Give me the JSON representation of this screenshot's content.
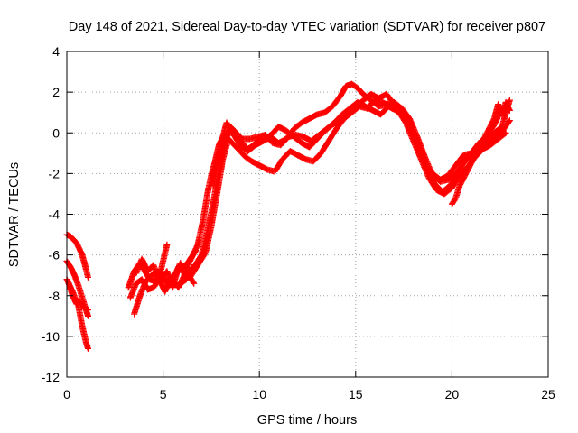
{
  "chart_data": {
    "type": "scatter",
    "title": "Day 148 of 2021, Sidereal Day-to-day VTEC variation (SDTVAR) for receiver p807",
    "xlabel": "GPS time / hours",
    "ylabel": "SDTVAR / TECUs",
    "xlim": [
      0,
      25
    ],
    "ylim": [
      -12,
      4
    ],
    "xticks": [
      0,
      5,
      10,
      15,
      20,
      25
    ],
    "yticks": [
      -12,
      -10,
      -8,
      -6,
      -4,
      -2,
      0,
      2,
      4
    ],
    "grid": true,
    "legend": "none",
    "marker": "+",
    "series_color": "#ff0000",
    "series": [
      {
        "name": "track-1",
        "x": [
          0.0,
          0.3,
          0.6,
          0.8,
          1.0,
          1.1
        ],
        "y": [
          -7.2,
          -7.8,
          -8.5,
          -9.5,
          -10.3,
          -10.6
        ]
      },
      {
        "name": "track-2",
        "x": [
          0.0,
          0.2,
          0.5,
          0.8,
          1.0,
          1.1
        ],
        "y": [
          -5.0,
          -5.1,
          -5.4,
          -6.0,
          -6.7,
          -7.1
        ]
      },
      {
        "name": "track-3",
        "x": [
          0.0,
          0.2,
          0.4,
          0.6,
          0.8,
          1.0,
          1.1
        ],
        "y": [
          -6.3,
          -6.6,
          -7.0,
          -7.5,
          -8.1,
          -8.7,
          -9.0
        ]
      },
      {
        "name": "track-4",
        "x": [
          0.1,
          0.3,
          0.5,
          0.7,
          0.9,
          1.1
        ],
        "y": [
          -7.4,
          -8.0,
          -8.4,
          -8.3,
          -8.6,
          -8.7
        ]
      },
      {
        "name": "track-5",
        "x": [
          3.2,
          3.5,
          3.8,
          4.0,
          4.3,
          4.6,
          4.9,
          5.2
        ],
        "y": [
          -7.6,
          -6.8,
          -6.4,
          -6.7,
          -7.2,
          -7.3,
          -6.7,
          -5.5
        ]
      },
      {
        "name": "track-6",
        "x": [
          3.3,
          3.6,
          3.9,
          4.2,
          4.5,
          4.8,
          5.1,
          5.4,
          5.8,
          6.2,
          6.6
        ],
        "y": [
          -8.1,
          -7.4,
          -7.2,
          -7.7,
          -7.6,
          -7.2,
          -7.8,
          -7.1,
          -7.6,
          -6.8,
          -7.4
        ]
      },
      {
        "name": "track-7",
        "x": [
          3.5,
          3.8,
          4.1,
          4.4,
          4.7,
          5.0,
          5.3,
          5.6,
          5.9,
          6.2,
          6.5
        ],
        "y": [
          -8.9,
          -8.0,
          -7.3,
          -7.0,
          -6.8,
          -7.1,
          -7.5,
          -7.0,
          -6.4,
          -7.2,
          -6.6
        ]
      },
      {
        "name": "track-8",
        "x": [
          3.6,
          3.9,
          4.2,
          4.5,
          4.8,
          5.2,
          5.5,
          5.8,
          6.1,
          6.4,
          6.7
        ],
        "y": [
          -6.9,
          -6.2,
          -6.8,
          -6.5,
          -7.3,
          -6.8,
          -7.6,
          -6.6,
          -6.8,
          -6.2,
          -5.8
        ]
      },
      {
        "name": "track-9",
        "x": [
          5.6,
          6.0,
          6.4,
          6.8,
          7.1,
          7.3,
          7.5,
          7.7,
          7.9,
          8.1,
          8.3,
          8.5,
          8.8,
          9.1,
          9.4,
          9.8,
          10.2,
          10.6,
          11.0,
          11.4,
          11.8,
          12.2,
          12.6,
          13.0,
          13.4,
          13.8,
          14.2,
          14.5,
          14.8,
          15.1,
          15.4,
          15.8,
          16.2,
          16.6,
          17.0,
          17.4,
          17.8,
          18.2,
          18.6,
          19.0,
          19.4,
          19.8,
          20.2,
          20.6,
          21.0,
          21.4,
          21.8,
          22.2,
          22.6,
          23.0
        ],
        "y": [
          -7.0,
          -6.6,
          -6.3,
          -5.5,
          -4.2,
          -3.0,
          -2.1,
          -1.4,
          -0.6,
          -0.2,
          0.5,
          0.2,
          -0.3,
          -0.7,
          -0.9,
          -0.6,
          -0.4,
          -0.2,
          -0.5,
          -0.3,
          0.2,
          0.5,
          0.7,
          0.9,
          1.0,
          1.3,
          1.8,
          2.3,
          2.4,
          2.2,
          1.9,
          1.6,
          1.3,
          1.4,
          1.5,
          1.2,
          0.7,
          -0.2,
          -1.2,
          -2.1,
          -2.4,
          -2.3,
          -2.0,
          -1.5,
          -1.1,
          -0.6,
          -0.3,
          0.0,
          0.3,
          1.6
        ]
      },
      {
        "name": "track-10",
        "x": [
          5.8,
          6.2,
          6.6,
          7.0,
          7.3,
          7.6,
          7.9,
          8.2,
          8.5,
          8.8,
          9.1,
          9.5,
          9.9,
          10.3,
          10.7,
          11.1,
          11.5,
          11.9,
          12.3,
          12.7,
          13.1,
          13.5,
          13.9,
          14.3,
          14.7,
          15.1,
          15.5,
          15.9,
          16.3,
          16.7,
          17.1,
          17.5,
          17.9,
          18.3,
          18.7,
          19.1,
          19.5,
          19.9,
          20.3,
          20.7,
          21.1,
          21.5,
          21.9,
          22.3,
          22.7,
          23.0
        ],
        "y": [
          -7.5,
          -7.2,
          -6.6,
          -6.0,
          -4.8,
          -3.5,
          -1.8,
          -0.6,
          0.3,
          0.0,
          -0.3,
          -0.3,
          -0.2,
          -0.1,
          -0.5,
          -0.6,
          -0.2,
          -0.1,
          -0.2,
          -0.4,
          -0.1,
          0.2,
          0.5,
          0.9,
          1.2,
          1.5,
          1.3,
          1.1,
          0.9,
          1.3,
          1.1,
          0.8,
          0.0,
          -0.9,
          -1.8,
          -2.5,
          -2.9,
          -2.6,
          -2.0,
          -1.3,
          -0.9,
          -0.7,
          -0.4,
          -0.2,
          0.2,
          0.6
        ]
      },
      {
        "name": "track-11",
        "x": [
          6.4,
          6.8,
          7.2,
          7.5,
          7.8,
          8.1,
          8.4,
          8.7,
          9.0,
          9.3,
          9.6,
          10.0,
          10.4,
          10.8,
          11.2,
          11.6,
          12.0,
          12.4,
          12.8,
          13.2,
          13.6,
          14.0,
          14.4,
          14.8,
          15.2,
          15.6,
          16.0,
          16.4,
          16.8,
          17.2,
          17.6,
          18.0,
          18.4,
          18.8,
          19.2,
          19.6,
          20.0,
          20.4,
          20.8,
          21.2,
          21.6,
          22.0,
          22.4,
          22.8
        ],
        "y": [
          -7.1,
          -6.5,
          -5.9,
          -4.6,
          -3.0,
          -1.3,
          -0.3,
          -0.6,
          -0.9,
          -1.2,
          -1.4,
          -1.6,
          -1.8,
          -1.9,
          -1.3,
          -0.9,
          -1.1,
          -1.3,
          -1.4,
          -1.0,
          -0.4,
          0.2,
          0.7,
          1.0,
          1.3,
          1.2,
          1.6,
          1.5,
          1.3,
          1.1,
          0.5,
          -0.4,
          -1.3,
          -2.2,
          -2.8,
          -3.0,
          -2.7,
          -2.1,
          -1.7,
          -1.2,
          -0.8,
          -0.6,
          -0.3,
          0.0
        ]
      },
      {
        "name": "track-12",
        "x": [
          7.6,
          7.9,
          8.2,
          8.5,
          8.8,
          9.1,
          9.4,
          9.7,
          10.0,
          10.3,
          10.6,
          11.0,
          11.4,
          11.8,
          12.2,
          12.6,
          13.0,
          13.4,
          13.8,
          14.2,
          14.6,
          15.0,
          15.4,
          15.8,
          16.2,
          16.6,
          17.0,
          17.4,
          17.8,
          18.2,
          18.6,
          19.0,
          19.4,
          19.8,
          20.2,
          20.6,
          21.0,
          21.4,
          21.8,
          22.2,
          22.6
        ],
        "y": [
          -2.6,
          -1.2,
          -0.3,
          0.2,
          -0.1,
          -0.5,
          -0.8,
          -0.6,
          -0.3,
          -0.3,
          -0.1,
          0.3,
          0.1,
          -0.2,
          -0.5,
          -0.7,
          -0.3,
          0.1,
          0.4,
          0.6,
          0.9,
          1.3,
          1.6,
          1.9,
          1.7,
          1.9,
          1.4,
          1.2,
          0.6,
          -0.5,
          -1.5,
          -2.0,
          -2.3,
          -2.1,
          -1.6,
          -1.1,
          -1.0,
          -0.5,
          -0.2,
          0.4,
          1.2
        ]
      },
      {
        "name": "track-13",
        "x": [
          20.0,
          20.2,
          20.4,
          22.2,
          22.4,
          22.6,
          22.8,
          23.0
        ],
        "y": [
          -3.5,
          -3.2,
          -2.6,
          0.7,
          1.4,
          0.9,
          1.5,
          1.1
        ]
      }
    ]
  }
}
